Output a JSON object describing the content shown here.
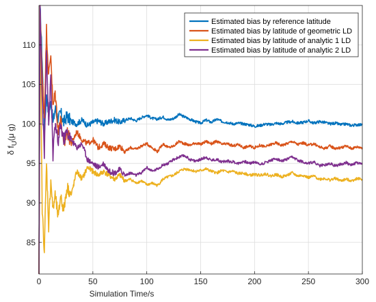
{
  "chart_data": {
    "type": "line",
    "xlabel": "Simulation Time/s",
    "ylabel_main": "δ f",
    "ylabel_sub": "U",
    "ylabel_unit": "(μ g)",
    "xlim": [
      0,
      300
    ],
    "ylim": [
      81,
      115
    ],
    "x_ticks": [
      0,
      50,
      100,
      150,
      200,
      250,
      300
    ],
    "y_ticks": [
      85,
      90,
      95,
      100,
      105,
      110
    ],
    "grid": true,
    "legend_position": "top-right",
    "series": [
      {
        "name": "Estimated bias by reference latitude",
        "color": "#0072BD",
        "points": [
          [
            0,
            81
          ],
          [
            1,
            115
          ],
          [
            3,
            108
          ],
          [
            5,
            99
          ],
          [
            7,
            104
          ],
          [
            9,
            101
          ],
          [
            11,
            103
          ],
          [
            13,
            100
          ],
          [
            15,
            102
          ],
          [
            18,
            100.5
          ],
          [
            20,
            101.5
          ],
          [
            23,
            100.2
          ],
          [
            26,
            101
          ],
          [
            30,
            100.3
          ],
          [
            35,
            100
          ],
          [
            40,
            100.5
          ],
          [
            45,
            99.8
          ],
          [
            50,
            100.2
          ],
          [
            55,
            100.4
          ],
          [
            60,
            100
          ],
          [
            65,
            100.3
          ],
          [
            70,
            100.5
          ],
          [
            75,
            100.2
          ],
          [
            80,
            100.5
          ],
          [
            85,
            100.7
          ],
          [
            90,
            100.4
          ],
          [
            95,
            100.8
          ],
          [
            100,
            101.1
          ],
          [
            105,
            100.7
          ],
          [
            110,
            100.6
          ],
          [
            115,
            100.9
          ],
          [
            120,
            100.5
          ],
          [
            125,
            100.7
          ],
          [
            130,
            101.2
          ],
          [
            135,
            100.9
          ],
          [
            140,
            100.6
          ],
          [
            145,
            100.3
          ],
          [
            150,
            100.1
          ],
          [
            155,
            100.5
          ],
          [
            160,
            100.2
          ],
          [
            165,
            100.6
          ],
          [
            170,
            100.3
          ],
          [
            175,
            100.2
          ],
          [
            180,
            100
          ],
          [
            185,
            100.1
          ],
          [
            190,
            100
          ],
          [
            195,
            99.9
          ],
          [
            200,
            99.7
          ],
          [
            205,
            99.8
          ],
          [
            210,
            100
          ],
          [
            215,
            99.9
          ],
          [
            220,
            100.1
          ],
          [
            225,
            100
          ],
          [
            230,
            100.2
          ],
          [
            235,
            100.3
          ],
          [
            240,
            100.1
          ],
          [
            245,
            100.2
          ],
          [
            250,
            100.4
          ],
          [
            255,
            100.1
          ],
          [
            260,
            100.3
          ],
          [
            265,
            100.2
          ],
          [
            270,
            100
          ],
          [
            275,
            100.1
          ],
          [
            280,
            99.9
          ],
          [
            285,
            100
          ],
          [
            290,
            99.8
          ],
          [
            295,
            99.9
          ],
          [
            300,
            99.9
          ]
        ]
      },
      {
        "name": "Estimated bias by latitude of geometric LD",
        "color": "#D95319",
        "points": [
          [
            0,
            81
          ],
          [
            1,
            115
          ],
          [
            3,
            106
          ],
          [
            5,
            101
          ],
          [
            7,
            112
          ],
          [
            9,
            106
          ],
          [
            11,
            109
          ],
          [
            13,
            102
          ],
          [
            15,
            104
          ],
          [
            18,
            99
          ],
          [
            20,
            101
          ],
          [
            23,
            97
          ],
          [
            26,
            99
          ],
          [
            30,
            97.5
          ],
          [
            35,
            99
          ],
          [
            40,
            98
          ],
          [
            45,
            97.5
          ],
          [
            50,
            98
          ],
          [
            55,
            97
          ],
          [
            60,
            97.5
          ],
          [
            65,
            97
          ],
          [
            70,
            96.8
          ],
          [
            75,
            97.2
          ],
          [
            80,
            96.5
          ],
          [
            85,
            97
          ],
          [
            90,
            96.8
          ],
          [
            95,
            97.2
          ],
          [
            100,
            97.5
          ],
          [
            105,
            97
          ],
          [
            110,
            96.5
          ],
          [
            115,
            97.5
          ],
          [
            120,
            97
          ],
          [
            125,
            97.2
          ],
          [
            130,
            97.8
          ],
          [
            135,
            97.5
          ],
          [
            140,
            97.3
          ],
          [
            145,
            97.6
          ],
          [
            150,
            97.4
          ],
          [
            155,
            97.8
          ],
          [
            160,
            97.5
          ],
          [
            165,
            97.8
          ],
          [
            170,
            97.4
          ],
          [
            175,
            97.5
          ],
          [
            180,
            97.2
          ],
          [
            185,
            97.4
          ],
          [
            190,
            97
          ],
          [
            195,
            97.2
          ],
          [
            200,
            97
          ],
          [
            205,
            97.3
          ],
          [
            210,
            97.1
          ],
          [
            215,
            97.4
          ],
          [
            220,
            97.6
          ],
          [
            225,
            97.3
          ],
          [
            230,
            97.5
          ],
          [
            235,
            97.8
          ],
          [
            240,
            97.4
          ],
          [
            245,
            97.6
          ],
          [
            250,
            97.3
          ],
          [
            255,
            97.5
          ],
          [
            260,
            97.1
          ],
          [
            265,
            96.9
          ],
          [
            270,
            97.2
          ],
          [
            275,
            96.9
          ],
          [
            280,
            97
          ],
          [
            285,
            97.2
          ],
          [
            290,
            96.9
          ],
          [
            295,
            97.1
          ],
          [
            300,
            97
          ]
        ]
      },
      {
        "name": "Estimated bias by latitude of analytic 1 LD",
        "color": "#EDB120",
        "points": [
          [
            0,
            81
          ],
          [
            1,
            115
          ],
          [
            3,
            89
          ],
          [
            5,
            84
          ],
          [
            7,
            95
          ],
          [
            9,
            87
          ],
          [
            11,
            93
          ],
          [
            13,
            89
          ],
          [
            15,
            91
          ],
          [
            18,
            88
          ],
          [
            20,
            91
          ],
          [
            23,
            89
          ],
          [
            26,
            92
          ],
          [
            30,
            91
          ],
          [
            35,
            94
          ],
          [
            40,
            93
          ],
          [
            45,
            94.5
          ],
          [
            50,
            94
          ],
          [
            55,
            93.5
          ],
          [
            60,
            94
          ],
          [
            65,
            93.5
          ],
          [
            70,
            93
          ],
          [
            75,
            93.5
          ],
          [
            80,
            92.8
          ],
          [
            85,
            93
          ],
          [
            90,
            92.5
          ],
          [
            95,
            92.8
          ],
          [
            100,
            92.3
          ],
          [
            105,
            92.5
          ],
          [
            110,
            92.2
          ],
          [
            115,
            93
          ],
          [
            120,
            93.3
          ],
          [
            125,
            93.5
          ],
          [
            130,
            94
          ],
          [
            135,
            94.3
          ],
          [
            140,
            94.2
          ],
          [
            145,
            94
          ],
          [
            150,
            94.1
          ],
          [
            155,
            94.3
          ],
          [
            160,
            94
          ],
          [
            165,
            93.8
          ],
          [
            170,
            94.1
          ],
          [
            175,
            93.9
          ],
          [
            180,
            94
          ],
          [
            185,
            93.7
          ],
          [
            190,
            93.8
          ],
          [
            195,
            93.5
          ],
          [
            200,
            93.6
          ],
          [
            205,
            93.5
          ],
          [
            210,
            93.7
          ],
          [
            215,
            93.4
          ],
          [
            220,
            93.6
          ],
          [
            225,
            93.3
          ],
          [
            230,
            93.5
          ],
          [
            235,
            93.8
          ],
          [
            240,
            93.4
          ],
          [
            245,
            93.5
          ],
          [
            250,
            93.2
          ],
          [
            255,
            93.4
          ],
          [
            260,
            93
          ],
          [
            265,
            93.1
          ],
          [
            270,
            92.9
          ],
          [
            275,
            93.1
          ],
          [
            280,
            92.8
          ],
          [
            285,
            93
          ],
          [
            290,
            92.8
          ],
          [
            295,
            93.1
          ],
          [
            300,
            93
          ]
        ]
      },
      {
        "name": "Estimated bias by latitude of analytic 2  LD",
        "color": "#7E2F8E",
        "points": [
          [
            0,
            81
          ],
          [
            1,
            115
          ],
          [
            3,
            103
          ],
          [
            5,
            96
          ],
          [
            7,
            110
          ],
          [
            9,
            100
          ],
          [
            11,
            106
          ],
          [
            13,
            96
          ],
          [
            15,
            100
          ],
          [
            18,
            97.5
          ],
          [
            20,
            100
          ],
          [
            23,
            98
          ],
          [
            26,
            99
          ],
          [
            30,
            98
          ],
          [
            35,
            97
          ],
          [
            40,
            97.5
          ],
          [
            45,
            95.5
          ],
          [
            50,
            95
          ],
          [
            55,
            94.5
          ],
          [
            60,
            95
          ],
          [
            65,
            94
          ],
          [
            70,
            93.8
          ],
          [
            75,
            94.2
          ],
          [
            80,
            93.5
          ],
          [
            85,
            93.8
          ],
          [
            90,
            93.5
          ],
          [
            95,
            93.8
          ],
          [
            100,
            94.5
          ],
          [
            105,
            94
          ],
          [
            110,
            94.3
          ],
          [
            115,
            94.8
          ],
          [
            120,
            95
          ],
          [
            125,
            95.5
          ],
          [
            130,
            95.8
          ],
          [
            135,
            96
          ],
          [
            140,
            95.5
          ],
          [
            145,
            95.3
          ],
          [
            150,
            95.5
          ],
          [
            155,
            95.8
          ],
          [
            160,
            95.4
          ],
          [
            165,
            95.5
          ],
          [
            170,
            95.2
          ],
          [
            175,
            95.3
          ],
          [
            180,
            95.2
          ],
          [
            185,
            95
          ],
          [
            190,
            95.3
          ],
          [
            195,
            95
          ],
          [
            200,
            95.2
          ],
          [
            205,
            94.9
          ],
          [
            210,
            95.1
          ],
          [
            215,
            95.4
          ],
          [
            220,
            95.6
          ],
          [
            225,
            95.3
          ],
          [
            230,
            95.5
          ],
          [
            235,
            95.8
          ],
          [
            240,
            95.4
          ],
          [
            245,
            95.2
          ],
          [
            250,
            95
          ],
          [
            255,
            95.2
          ],
          [
            260,
            94.7
          ],
          [
            265,
            94.8
          ],
          [
            270,
            95
          ],
          [
            275,
            94.7
          ],
          [
            280,
            94.9
          ],
          [
            285,
            95.1
          ],
          [
            290,
            94.8
          ],
          [
            295,
            95.1
          ],
          [
            300,
            94.9
          ]
        ]
      }
    ]
  }
}
